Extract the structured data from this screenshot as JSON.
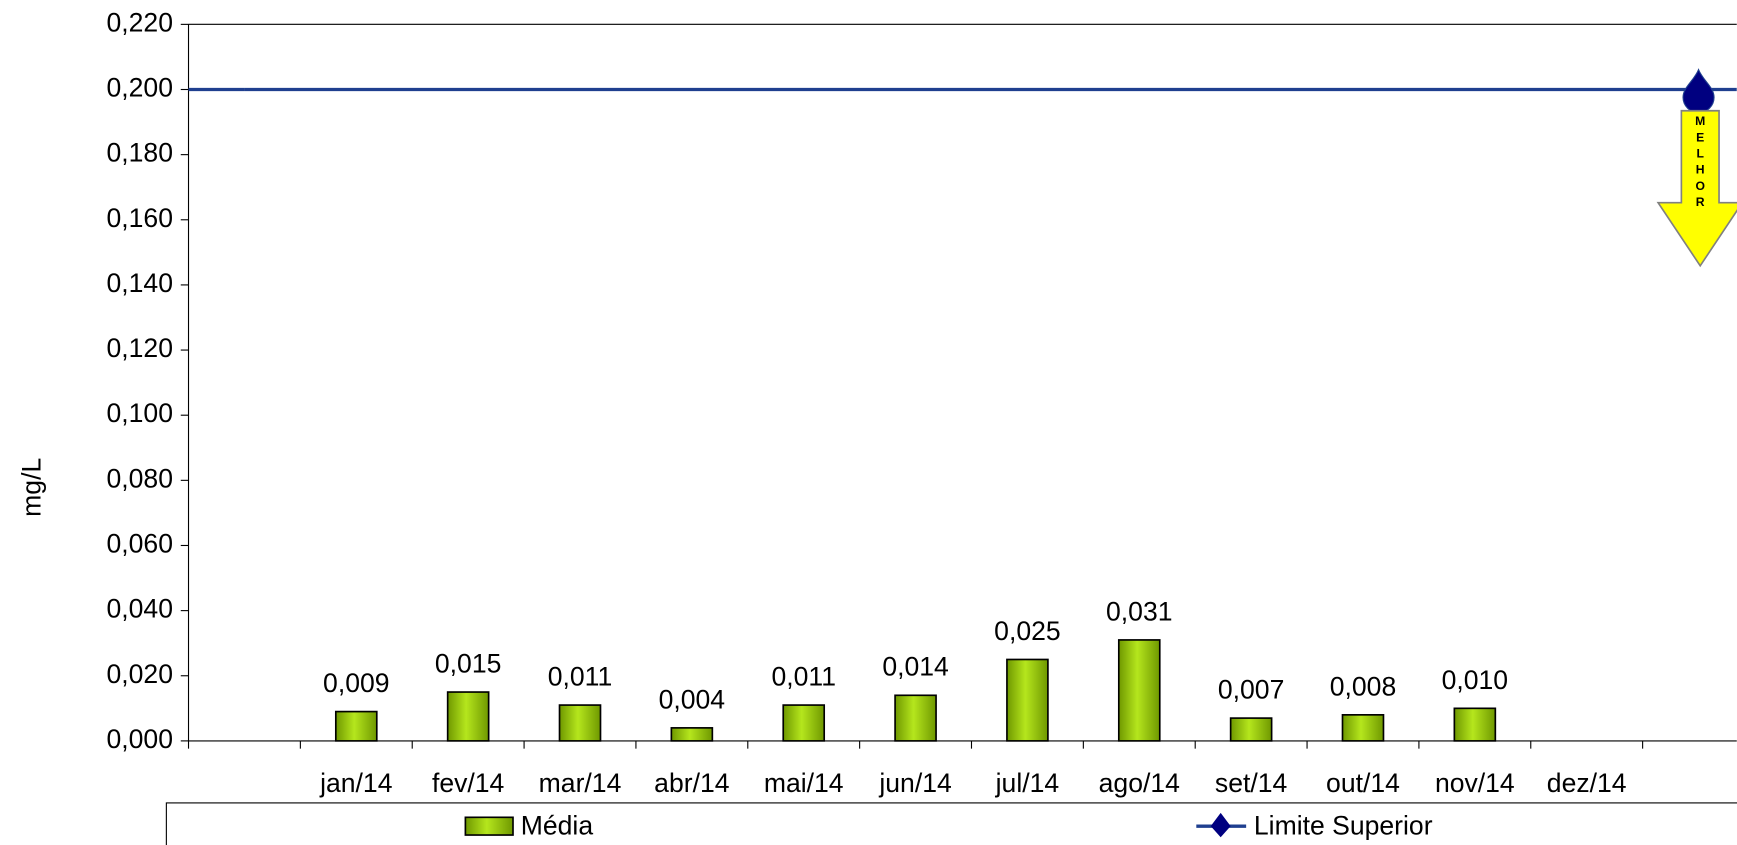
{
  "chart_data": {
    "type": "bar",
    "y_label": "mg/L",
    "categories": [
      null,
      "jan/14",
      "fev/14",
      "mar/14",
      "abr/14",
      "mai/14",
      "jun/14",
      "jul/14",
      "ago/14",
      "set/14",
      "out/14",
      "nov/14",
      "dez/14",
      null
    ],
    "series": [
      {
        "name": "Média",
        "color": "#8fbf00",
        "type": "bar",
        "values": [
          null,
          0.009,
          0.015,
          0.011,
          0.004,
          0.011,
          0.014,
          0.025,
          0.031,
          0.007,
          0.008,
          0.01,
          null,
          null
        ],
        "value_labels": [
          null,
          "0,009",
          "0,015",
          "0,011",
          "0,004",
          "0,011",
          "0,014",
          "0,025",
          "0,031",
          "0,007",
          "0,008",
          "0,010",
          null,
          null
        ]
      },
      {
        "name": "Limite Superior",
        "color": "#000080",
        "type": "line",
        "values": [
          0.2,
          0.2,
          0.2,
          0.2,
          0.2,
          0.2,
          0.2,
          0.2,
          0.2,
          0.2,
          0.2,
          0.2,
          0.2,
          0.2
        ]
      }
    ],
    "ylim": [
      0,
      0.22
    ],
    "yticks": [
      {
        "value": 0,
        "label": "0,000"
      },
      {
        "value": 0.02,
        "label": "0,020"
      },
      {
        "value": 0.04,
        "label": "0,040"
      },
      {
        "value": 0.06,
        "label": "0,060"
      },
      {
        "value": 0.08,
        "label": "0,080"
      },
      {
        "value": 0.1,
        "label": "0,100"
      },
      {
        "value": 0.12,
        "label": "0,120"
      },
      {
        "value": 0.14,
        "label": "0,140"
      },
      {
        "value": 0.16,
        "label": "0,160"
      },
      {
        "value": 0.18,
        "label": "0,180"
      },
      {
        "value": 0.2,
        "label": "0,200"
      },
      {
        "value": 0.22,
        "label": "0,220"
      }
    ],
    "annotation": "MELHOR",
    "legend": "bottom"
  }
}
